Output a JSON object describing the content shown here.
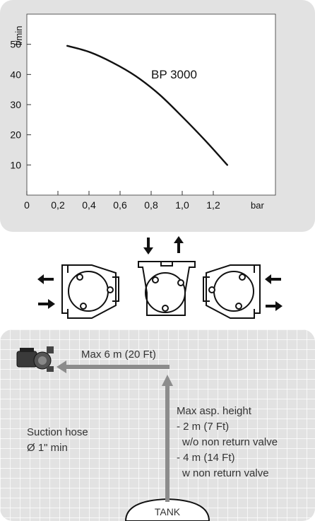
{
  "chart_data": {
    "type": "line",
    "title": "",
    "xlabel": "bar",
    "ylabel": "l/min",
    "xlim": [
      0,
      1.6
    ],
    "ylim": [
      0,
      60
    ],
    "x_ticks": [
      "0",
      "0,2",
      "0,4",
      "0,6",
      "0,8",
      "1,0",
      "1,2"
    ],
    "x_tick_values": [
      0,
      0.2,
      0.4,
      0.6,
      0.8,
      1.0,
      1.2
    ],
    "y_ticks": [
      "10",
      "20",
      "30",
      "40",
      "50"
    ],
    "y_tick_values": [
      10,
      20,
      30,
      40,
      50
    ],
    "series": [
      {
        "name": "BP 3000",
        "color": "#111111",
        "x": [
          0.26,
          0.4,
          0.55,
          0.7,
          0.85,
          1.0,
          1.15,
          1.29
        ],
        "y": [
          49.5,
          47.5,
          44,
          39.5,
          33.5,
          26,
          18,
          10
        ]
      }
    ],
    "grid": false
  },
  "orientation": {
    "icons": [
      "arrow-left-icon",
      "arrow-right-icon",
      "arrow-down-icon",
      "arrow-up-icon"
    ]
  },
  "installation": {
    "max_distance": "Max 6 m (20 Ft)",
    "asp_height_title": "Max asp. height",
    "asp_height_line1": "- 2 m (7 Ft)",
    "asp_height_line2": "w/o non return valve",
    "asp_height_line3": "- 4 m (14 Ft)",
    "asp_height_line4": "w non return valve",
    "hose_line1": "Suction hose",
    "hose_line2": "Ø 1\" min",
    "tank_label": "TANK",
    "colors": {
      "panel": "#e2e2e2",
      "grid": "#ffffff",
      "pipe": "#8c8c8c"
    }
  }
}
